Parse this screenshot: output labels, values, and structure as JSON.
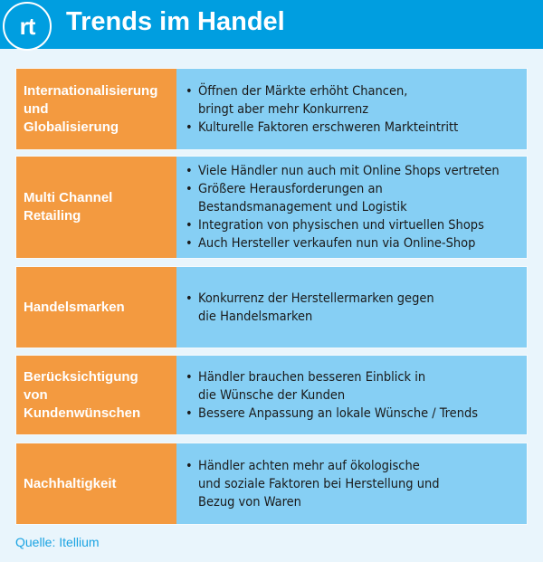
{
  "header": {
    "logo": "rt",
    "title": "Trends im Handel"
  },
  "rows": [
    {
      "label": [
        "Internationalisierung",
        "und",
        "Globalisierung"
      ],
      "bullets": [
        [
          "Öffnen der Märkte erhöht Chancen,",
          "bringt aber mehr Konkurrenz"
        ],
        [
          "Kulturelle Faktoren erschweren Markteintritt"
        ]
      ]
    },
    {
      "label": [
        "Multi Channel",
        "Retailing"
      ],
      "bullets": [
        [
          "Viele Händler nun auch mit Online Shops vertreten"
        ],
        [
          "Größere Herausforderungen an",
          "Bestandsmanagement und Logistik"
        ],
        [
          "Integration von physischen und virtuellen Shops"
        ],
        [
          "Auch Hersteller verkaufen nun via Online-Shop"
        ]
      ]
    },
    {
      "label": [
        "Handelsmarken"
      ],
      "bullets": [
        [
          "Konkurrenz der Herstellermarken gegen",
          "die Handelsmarken"
        ]
      ]
    },
    {
      "label": [
        "Berücksichtigung",
        "von",
        "Kundenwünschen"
      ],
      "bullets": [
        [
          "Händler brauchen besseren Einblick in",
          "die Wünsche der Kunden"
        ],
        [
          "Bessere Anpassung an lokale Wünsche / Trends"
        ]
      ]
    },
    {
      "label": [
        "Nachhaltigkeit"
      ],
      "bullets": [
        [
          "Händler achten mehr auf ökologische",
          "und soziale Faktoren bei Herstellung und",
          "Bezug von Waren"
        ]
      ]
    }
  ],
  "source": "Quelle: Itellium",
  "colors": {
    "header": "#009ee0",
    "label": "#f39a40",
    "content": "#86cff4",
    "background": "#e9f5fc"
  }
}
